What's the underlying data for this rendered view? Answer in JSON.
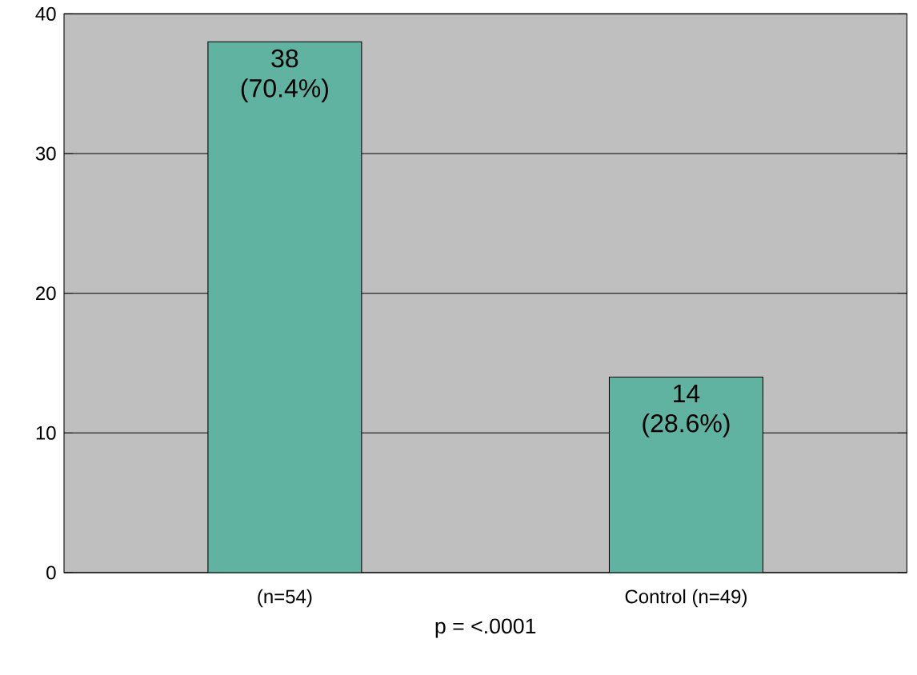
{
  "chart_data": {
    "type": "bar",
    "categories": [
      "(n=54)",
      "Control (n=49)"
    ],
    "values": [
      38,
      14
    ],
    "color": "#5fb3a0",
    "value_labels": [
      "38 (70.4%)",
      "14 (28.6%)"
    ],
    "ylim": [
      0,
      40
    ],
    "yticks": [
      0,
      10,
      20,
      30,
      40
    ],
    "grid": "y",
    "annotations": [
      "p = <.0001"
    ]
  }
}
